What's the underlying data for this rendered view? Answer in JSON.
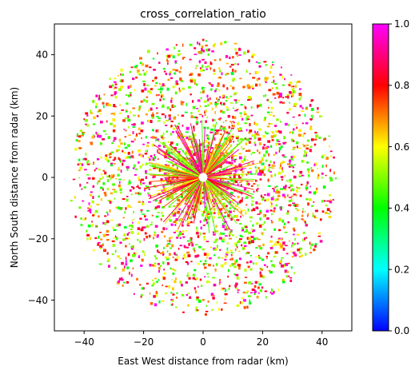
{
  "chart_data": {
    "type": "scatter",
    "title": "cross_correlation_ratio",
    "xlabel": "East West distance from radar (km)",
    "ylabel": "North South distance from radar (km)",
    "xlim": [
      -50,
      50
    ],
    "ylim": [
      -50,
      50
    ],
    "x_ticks": [
      -40,
      -20,
      0,
      20,
      40
    ],
    "y_ticks": [
      -40,
      -20,
      0,
      20,
      40
    ],
    "x_tick_labels": [
      "−40",
      "−20",
      "0",
      "20",
      "40"
    ],
    "y_tick_labels": [
      "−40",
      "−20",
      "0",
      "20",
      "40"
    ],
    "grid": false,
    "max_range_km": 45,
    "colorbar": {
      "range": [
        0.0,
        1.0
      ],
      "ticks": [
        0.0,
        0.2,
        0.4,
        0.6,
        0.8,
        1.0
      ],
      "tick_labels": [
        "0.0",
        "0.2",
        "0.4",
        "0.6",
        "0.8",
        "1.0"
      ],
      "colormap": [
        "#0000ff",
        "#00ffff",
        "#00ff00",
        "#ffff00",
        "#ff0000",
        "#ff00ff"
      ]
    },
    "value_distribution": "mostly 0.4–1.0 (green, yellow, orange, red, magenta) scattered over a radial radar sweep out to about 45 km"
  }
}
